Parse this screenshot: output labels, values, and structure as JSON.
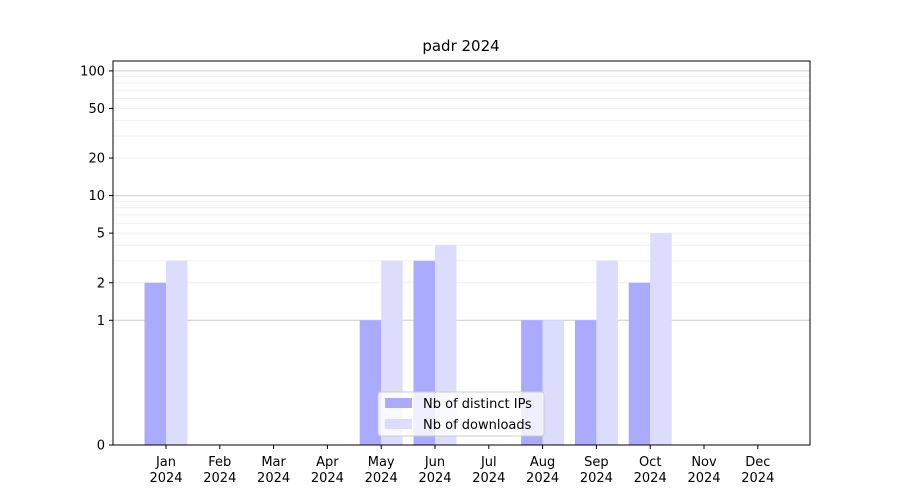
{
  "chart_data": {
    "type": "bar",
    "title": "padr 2024",
    "xlabel": "",
    "ylabel": "",
    "scale": "symlog",
    "ylim": [
      0,
      120
    ],
    "yticks": [
      0,
      1,
      2,
      5,
      10,
      20,
      50,
      100
    ],
    "categories": [
      {
        "month": "Jan",
        "year": "2024"
      },
      {
        "month": "Feb",
        "year": "2024"
      },
      {
        "month": "Mar",
        "year": "2024"
      },
      {
        "month": "Apr",
        "year": "2024"
      },
      {
        "month": "May",
        "year": "2024"
      },
      {
        "month": "Jun",
        "year": "2024"
      },
      {
        "month": "Jul",
        "year": "2024"
      },
      {
        "month": "Aug",
        "year": "2024"
      },
      {
        "month": "Sep",
        "year": "2024"
      },
      {
        "month": "Oct",
        "year": "2024"
      },
      {
        "month": "Nov",
        "year": "2024"
      },
      {
        "month": "Dec",
        "year": "2024"
      }
    ],
    "series": [
      {
        "name": "Nb of distinct IPs",
        "color": "#aaaaff",
        "values": [
          2,
          0,
          0,
          0,
          1,
          3,
          0,
          1,
          1,
          2,
          0,
          0
        ]
      },
      {
        "name": "Nb of downloads",
        "color": "#dcdcfc",
        "values": [
          3,
          0,
          0,
          0,
          3,
          4,
          0,
          1,
          3,
          5,
          0,
          0
        ]
      }
    ],
    "grid": true,
    "legend_position": "lower-center"
  }
}
